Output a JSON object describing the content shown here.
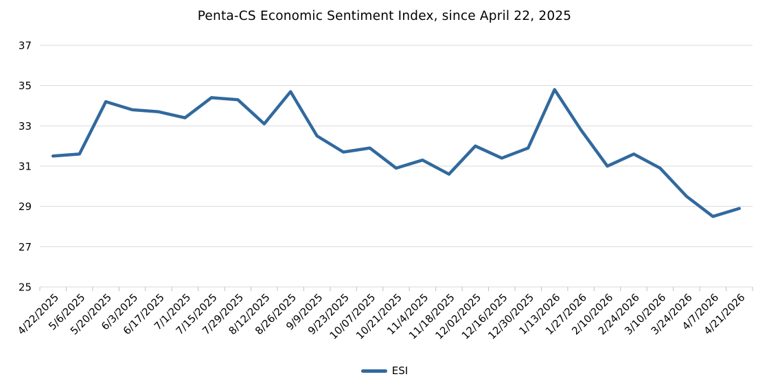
{
  "title": "Penta-CS Economic Sentiment Index, since April 22, 2025",
  "legend": {
    "items": [
      {
        "label": "ESI",
        "color": "#31699E"
      }
    ]
  },
  "colors": {
    "line": "#31699E",
    "gridline": "#D9D9D9",
    "axis": "#BFBFBF",
    "text": "#000000",
    "background": "#FFFFFF"
  },
  "chart_data": {
    "type": "line",
    "title": "Penta-CS Economic Sentiment Index, since April 22, 2025",
    "categories": [
      "4/22/2025",
      "5/6/2025",
      "5/20/2025",
      "6/3/2025",
      "6/17/2025",
      "7/1/2025",
      "7/15/2025",
      "7/29/2025",
      "8/12/2025",
      "8/26/2025",
      "9/9/2025",
      "9/23/2025",
      "10/07/2025",
      "10/21/2025",
      "11/4/2025",
      "11/18/2025",
      "12/02/2025",
      "12/16/2025",
      "12/30/2025",
      "1/13/2026",
      "1/27/2026",
      "2/10/2026",
      "2/24/2026",
      "3/10/2026",
      "3/24/2026",
      "4/7/2026",
      "4/21/2026"
    ],
    "series": [
      {
        "name": "ESI",
        "color": "#31699E",
        "values": [
          31.5,
          31.6,
          34.2,
          33.8,
          33.7,
          33.4,
          34.4,
          34.3,
          33.1,
          34.7,
          32.5,
          31.7,
          31.9,
          30.9,
          31.3,
          30.6,
          32.0,
          31.4,
          31.9,
          34.8,
          32.8,
          31.0,
          31.6,
          30.9,
          29.5,
          28.5,
          28.9
        ]
      }
    ],
    "xlabel": "",
    "ylabel": "",
    "ylim": [
      25,
      37
    ],
    "yticks": [
      25,
      27,
      29,
      31,
      33,
      35,
      37
    ],
    "grid": "horizontal",
    "legend_position": "bottom",
    "x_label_rotation": -45
  }
}
